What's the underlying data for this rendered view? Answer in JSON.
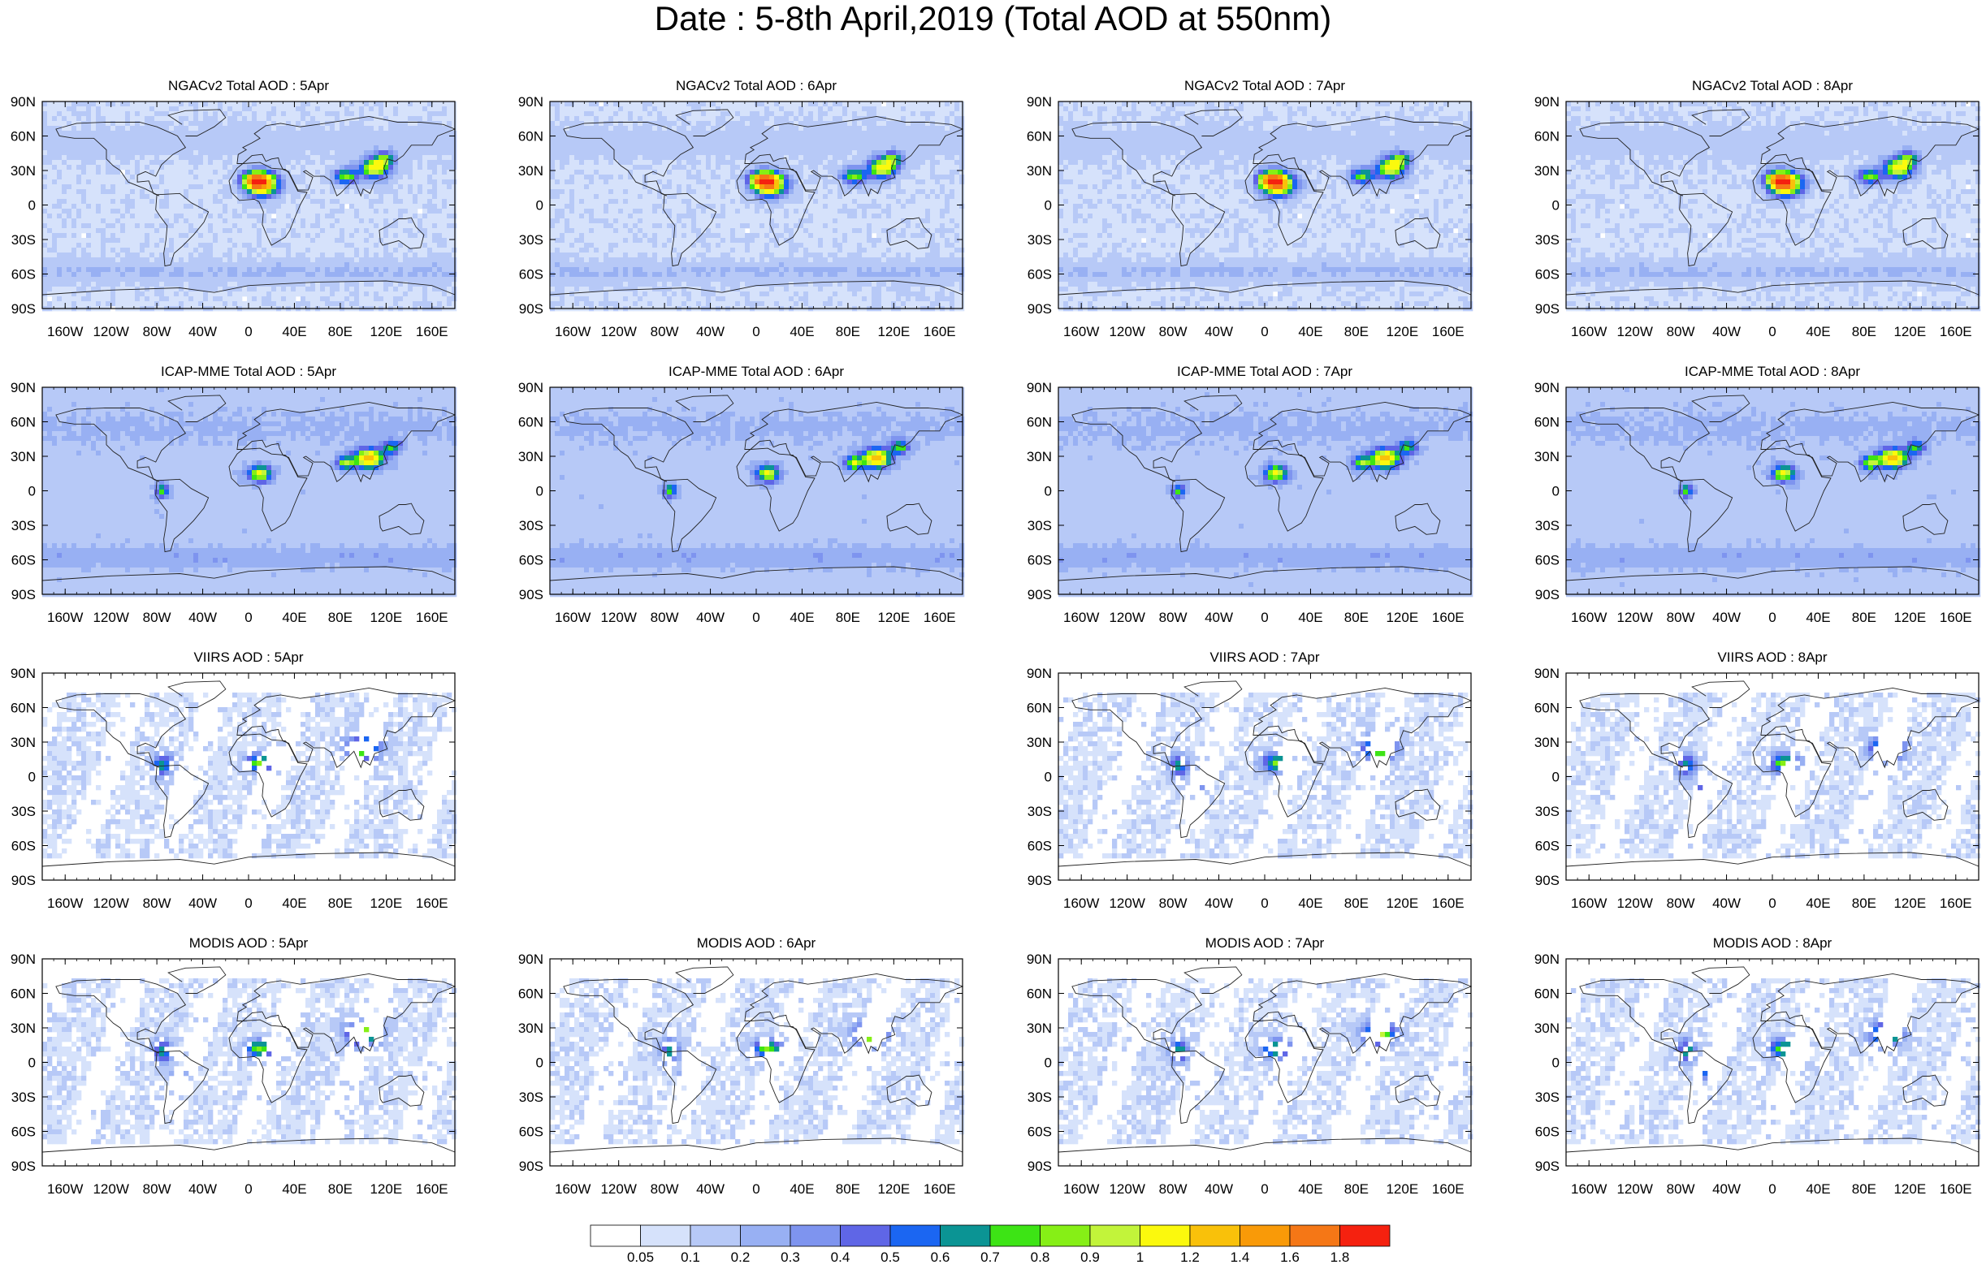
{
  "title": "Date : 5-8th April,2019 (Total AOD at 550nm)",
  "lat_labels": [
    "90N",
    "60N",
    "30N",
    "0",
    "30S",
    "60S",
    "90S"
  ],
  "lon_labels": [
    "160W",
    "120W",
    "80W",
    "40W",
    "0",
    "40E",
    "80E",
    "120E",
    "160E"
  ],
  "rows": [
    {
      "product": "NGACv2 Total AOD",
      "panels": [
        {
          "title": "NGACv2 Total AOD : 5Apr",
          "shown": true
        },
        {
          "title": "NGACv2 Total AOD : 6Apr",
          "shown": true
        },
        {
          "title": "NGACv2 Total AOD : 7Apr",
          "shown": true
        },
        {
          "title": "NGACv2 Total AOD : 8Apr",
          "shown": true
        }
      ]
    },
    {
      "product": "ICAP-MME Total AOD",
      "panels": [
        {
          "title": "ICAP-MME Total AOD : 5Apr",
          "shown": true
        },
        {
          "title": "ICAP-MME Total AOD : 6Apr",
          "shown": true
        },
        {
          "title": "ICAP-MME Total AOD : 7Apr",
          "shown": true
        },
        {
          "title": "ICAP-MME Total AOD : 8Apr",
          "shown": true
        }
      ]
    },
    {
      "product": "VIIRS AOD",
      "panels": [
        {
          "title": "VIIRS AOD : 5Apr",
          "shown": true
        },
        {
          "title": "",
          "shown": false
        },
        {
          "title": "VIIRS AOD : 7Apr",
          "shown": true
        },
        {
          "title": "VIIRS AOD : 8Apr",
          "shown": true
        }
      ]
    },
    {
      "product": "MODIS AOD",
      "panels": [
        {
          "title": "MODIS AOD : 5Apr",
          "shown": true
        },
        {
          "title": "MODIS AOD : 6Apr",
          "shown": true
        },
        {
          "title": "MODIS AOD : 7Apr",
          "shown": true
        },
        {
          "title": "MODIS AOD : 8Apr",
          "shown": true
        }
      ]
    }
  ],
  "colorbar": {
    "labels": [
      "0.05",
      "0.1",
      "0.2",
      "0.3",
      "0.4",
      "0.5",
      "0.6",
      "0.7",
      "0.8",
      "0.9",
      "1",
      "1.2",
      "1.4",
      "1.6",
      "1.8"
    ],
    "colors": [
      "#ffffff",
      "#d6e2fb",
      "#b7c9f7",
      "#98b0f3",
      "#7e94ef",
      "#5f66e6",
      "#1b66f2",
      "#0b9494",
      "#3de415",
      "#86ef16",
      "#c2f43a",
      "#fbf90d",
      "#f9c10a",
      "#f99a08",
      "#f57716",
      "#f5210f"
    ]
  }
}
